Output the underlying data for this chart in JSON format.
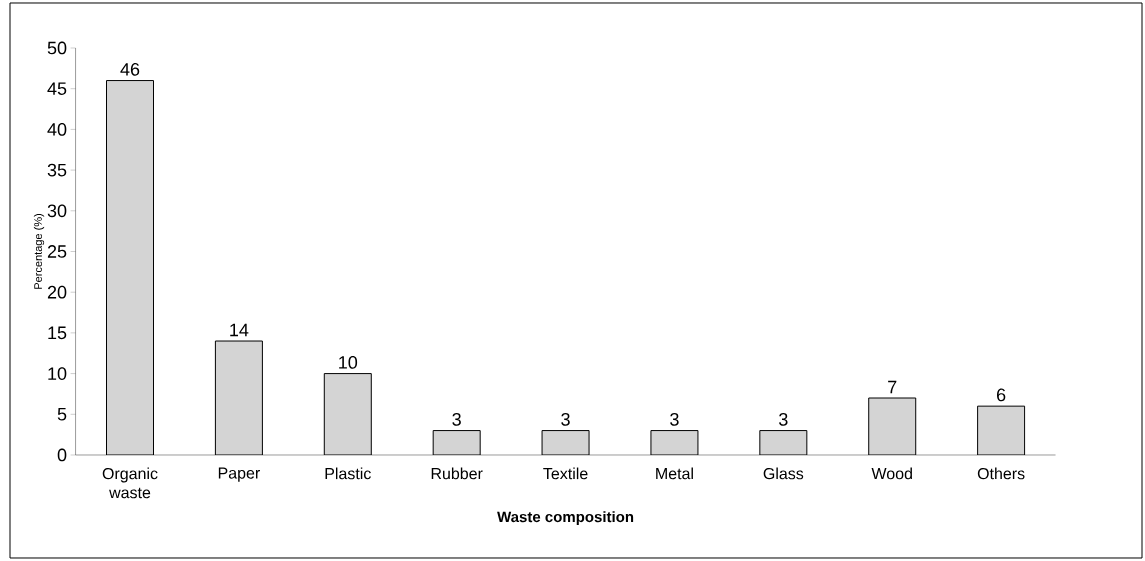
{
  "chart_data": {
    "type": "bar",
    "xlabel": "Waste composition",
    "ylabel": "Percentage (%)",
    "categories": [
      "Organic waste",
      "Paper",
      "Plastic",
      "Rubber",
      "Textile",
      "Metal",
      "Glass",
      "Wood",
      "Others"
    ],
    "values": [
      46,
      14,
      10,
      3,
      3,
      3,
      3,
      7,
      6
    ],
    "color": "#d4d4d4",
    "ylim": [
      0,
      50
    ],
    "yticks": [
      0,
      5,
      10,
      15,
      20,
      25,
      30,
      35,
      40,
      45,
      50
    ],
    "data_labels": true,
    "grid": false
  }
}
